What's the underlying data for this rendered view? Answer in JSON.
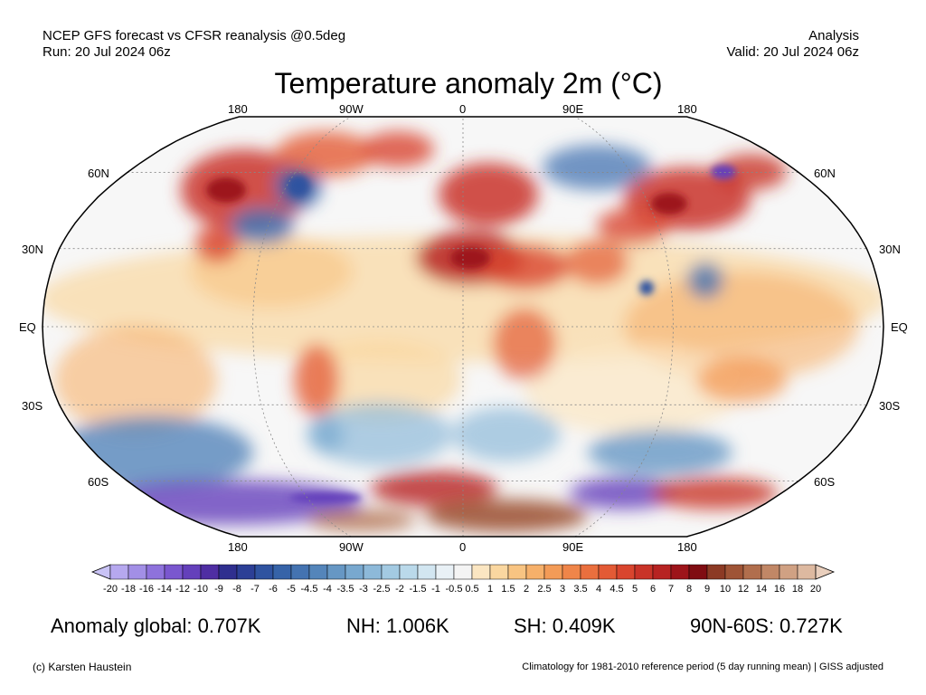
{
  "header": {
    "source_line": "NCEP GFS forecast vs CFSR reanalysis @0.5deg",
    "run_line": "Run: 20 Jul 2024 06z",
    "type_line": "Analysis",
    "valid_line": "Valid: 20 Jul 2024 06z"
  },
  "title": "Temperature anomaly 2m (°C)",
  "map": {
    "projection": "Robinson",
    "lon_labels_top": [
      "180",
      "90W",
      "0",
      "90E",
      "180"
    ],
    "lon_labels_bottom": [
      "180",
      "90W",
      "0",
      "90E",
      "180"
    ],
    "lat_labels_left": [
      "60N",
      "30N",
      "EQ",
      "30S",
      "60S"
    ],
    "lat_labels_right": [
      "60N",
      "30N",
      "EQ",
      "30S",
      "60S"
    ],
    "ocean_fill_color": "#f7f7f7"
  },
  "colorbar": {
    "labels": [
      "-20",
      "-18",
      "-16",
      "-14",
      "-12",
      "-10",
      "-9",
      "-8",
      "-7",
      "-6",
      "-5",
      "-4.5",
      "-4",
      "-3.5",
      "-3",
      "-2.5",
      "-2",
      "-1.5",
      "-1",
      "-0.5",
      "0.5",
      "1",
      "1.5",
      "2",
      "2.5",
      "3",
      "3.5",
      "4",
      "4.5",
      "5",
      "6",
      "7",
      "8",
      "9",
      "10",
      "12",
      "14",
      "16",
      "18",
      "20"
    ],
    "colors": [
      "#c9c3f5",
      "#b6a8ef",
      "#a28fe6",
      "#8e72dc",
      "#7a57cf",
      "#6440bb",
      "#4f2ea3",
      "#2f2f8f",
      "#2c3f96",
      "#2f53a0",
      "#3663a8",
      "#4473b1",
      "#5485ba",
      "#6697c4",
      "#78a8cf",
      "#8db9d9",
      "#a3cae2",
      "#bad9ea",
      "#d2e6f1",
      "#e9f1f6",
      "#f4f4f4",
      "#fbe6c2",
      "#fad7a0",
      "#f8c482",
      "#f6b06a",
      "#f39b57",
      "#ef8549",
      "#ea6f3e",
      "#e35a35",
      "#d9452e",
      "#c93328",
      "#b72322",
      "#9d141a",
      "#800d12",
      "#8c3a24",
      "#9f5436",
      "#b16e4d",
      "#c18766",
      "#d0a183",
      "#ddb9a0",
      "#e9cfbd"
    ]
  },
  "stats": {
    "global": "Anomaly global: 0.707K",
    "nh": "NH: 1.006K",
    "sh": "SH: 0.409K",
    "arctic": "90N-60S: 0.727K"
  },
  "footer": {
    "credit": "(c) Karsten Haustein",
    "climatology": "Climatology for 1981-2010 reference period (5 day running mean) | GISS adjusted"
  }
}
